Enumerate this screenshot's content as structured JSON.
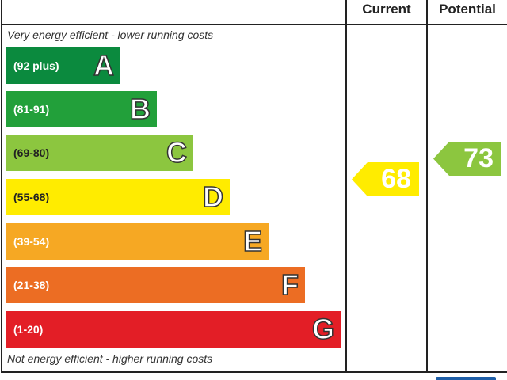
{
  "chart_data": {
    "type": "bar",
    "headers": {
      "current": "Current",
      "potential": "Potential"
    },
    "top_note": "Very energy efficient - lower running costs",
    "bottom_note": "Not energy efficient - higher running costs",
    "bands": [
      {
        "letter": "A",
        "range": "(92 plus)",
        "color": "#0b8a3e"
      },
      {
        "letter": "B",
        "range": "(81-91)",
        "color": "#22a03a"
      },
      {
        "letter": "C",
        "range": "(69-80)",
        "color": "#8cc63f"
      },
      {
        "letter": "D",
        "range": "(55-68)",
        "color": "#ffec00"
      },
      {
        "letter": "E",
        "range": "(39-54)",
        "color": "#f6a823"
      },
      {
        "letter": "F",
        "range": "(21-38)",
        "color": "#ec6d23"
      },
      {
        "letter": "G",
        "range": "(1-20)",
        "color": "#e31e26"
      }
    ],
    "current": {
      "value": "68",
      "band": "D",
      "color": "#ffec00"
    },
    "potential": {
      "value": "73",
      "band": "C",
      "color": "#8cc63f"
    }
  }
}
